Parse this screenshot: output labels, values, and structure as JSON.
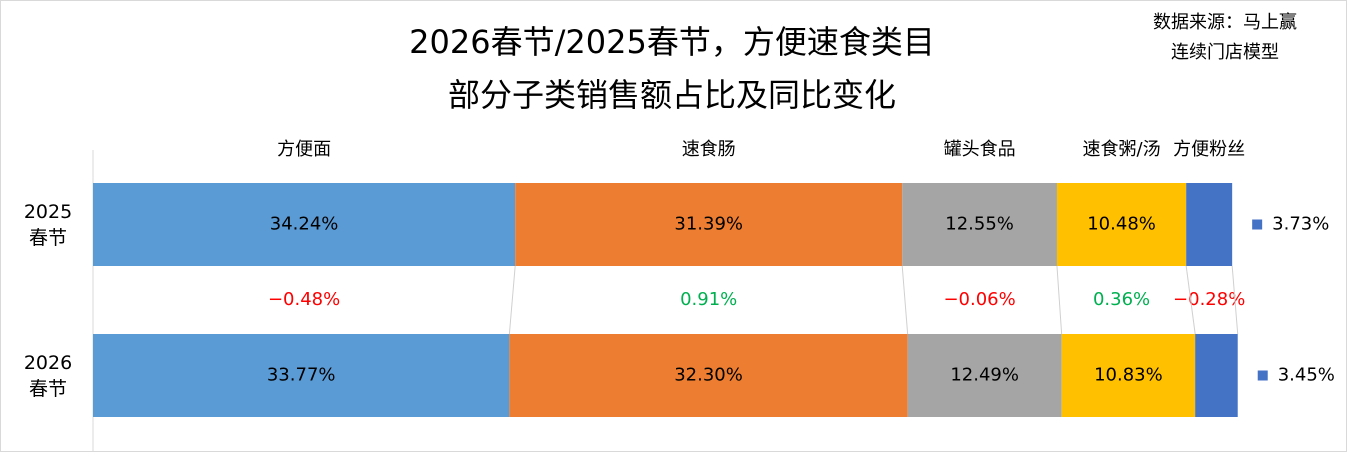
{
  "chart_data": {
    "type": "bar",
    "orientation": "horizontal",
    "stacked": true,
    "title": [
      "2026春节/2025春节，方便速食类目",
      "部分子类销售额占比及同比变化"
    ],
    "source": [
      "数据来源：马上赢",
      "连续门店模型"
    ],
    "categories": [
      "2025\n春节",
      "2026\n春节"
    ],
    "xlim": [
      0,
      100
    ],
    "series": [
      {
        "name": "方便面",
        "color": "#5b9bd5",
        "values": [
          34.24,
          33.77
        ],
        "value_labels": [
          "34.24%",
          "33.77%"
        ]
      },
      {
        "name": "速食肠",
        "color": "#ed7d31",
        "values": [
          31.39,
          32.3
        ],
        "value_labels": [
          "31.39%",
          "32.30%"
        ]
      },
      {
        "name": "罐头食品",
        "color": "#a5a5a5",
        "values": [
          12.55,
          12.49
        ],
        "value_labels": [
          "12.55%",
          "12.49%"
        ]
      },
      {
        "name": "速食粥/汤",
        "color": "#ffc000",
        "values": [
          10.48,
          10.83
        ],
        "value_labels": [
          "10.48%",
          "10.83%"
        ]
      },
      {
        "name": "方便粉丝",
        "color": "#4472c4",
        "values": [
          3.73,
          3.45
        ],
        "value_labels": [
          "3.73%",
          "3.45%"
        ]
      }
    ],
    "changes": {
      "values": [
        -0.48,
        0.91,
        -0.06,
        0.36,
        -0.28
      ],
      "value_labels": [
        "−0.48%",
        "0.91%",
        "−0.06%",
        "0.36%",
        "−0.28%"
      ],
      "negative_color": "#ff0000",
      "positive_color": "#00b050"
    }
  }
}
